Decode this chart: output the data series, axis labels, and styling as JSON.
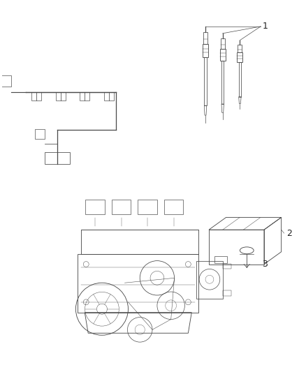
{
  "bg_color": "#ffffff",
  "line_color": "#4a4a4a",
  "text_color": "#222222",
  "fig_width": 4.38,
  "fig_height": 5.33,
  "dpi": 100,
  "label_1": "1",
  "label_2": "2",
  "label_3": "3",
  "font_size_labels": 9
}
